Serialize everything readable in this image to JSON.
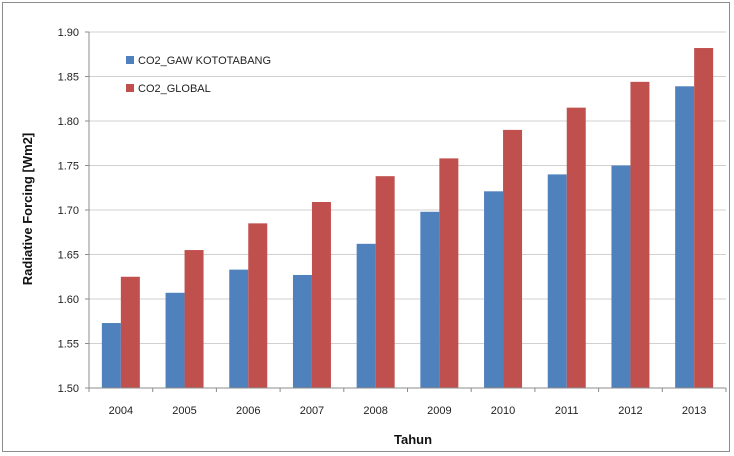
{
  "chart_data": {
    "type": "bar",
    "title": "",
    "xlabel": "Tahun",
    "ylabel": "Radiative Forcing [Wm2]",
    "categories": [
      "2004",
      "2005",
      "2006",
      "2007",
      "2008",
      "2009",
      "2010",
      "2011",
      "2012",
      "2013"
    ],
    "series": [
      {
        "name": "CO2_GAW KOTOTABANG",
        "color": "#4f81bd",
        "values": [
          1.573,
          1.607,
          1.633,
          1.627,
          1.662,
          1.698,
          1.721,
          1.74,
          1.75,
          1.839
        ]
      },
      {
        "name": "CO2_GLOBAL",
        "color": "#c0504d",
        "values": [
          1.625,
          1.655,
          1.685,
          1.709,
          1.738,
          1.758,
          1.79,
          1.815,
          1.844,
          1.882
        ]
      }
    ],
    "ylim": [
      1.5,
      1.9
    ],
    "yticks": [
      "1.50",
      "1.55",
      "1.60",
      "1.65",
      "1.70",
      "1.75",
      "1.80",
      "1.85",
      "1.90"
    ],
    "grid": "horizontal",
    "legend": "top-left"
  }
}
